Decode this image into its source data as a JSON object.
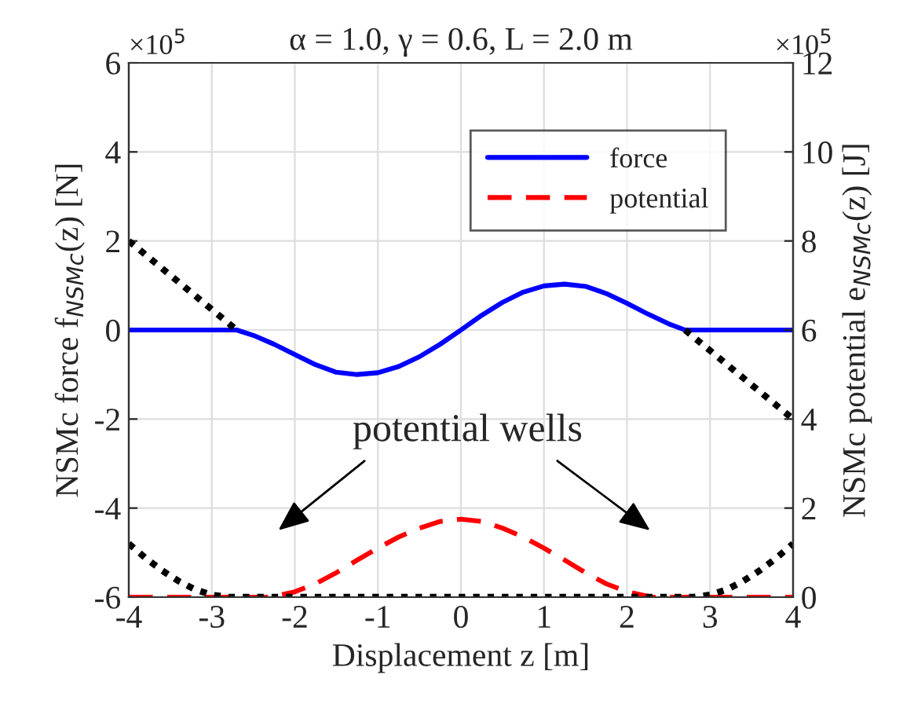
{
  "chart_data": {
    "type": "line",
    "title": "α = 1.0, γ = 0.6, L = 2.0 m",
    "xlabel": "Displacement z [m]",
    "ylabel": "NSMc force f$_{NSMc}$(z) [N]",
    "y2label": "NSMc potential e$_{NSMc}$(z) [J]",
    "xlim": [
      -4,
      4
    ],
    "xticks": [
      -4,
      -3,
      -2,
      -1,
      0,
      1,
      2,
      3,
      4
    ],
    "ylim": [
      -6,
      6
    ],
    "yticks": [
      -6,
      -4,
      -2,
      0,
      2,
      4,
      6
    ],
    "y2lim": [
      0,
      12
    ],
    "y2ticks": [
      0,
      2,
      4,
      6,
      8,
      10,
      12
    ],
    "grid": true,
    "legend": "top right",
    "series": [
      {
        "name": "force",
        "color": "#0000ff",
        "line_style": "solid",
        "x": [
          -4,
          -2.7,
          -2.5,
          -2.25,
          -2,
          -1.75,
          -1.5,
          -1.25,
          -1,
          -0.75,
          -0.5,
          -0.25,
          0,
          0.25,
          0.5,
          0.75,
          1,
          1.25,
          1.5,
          1.75,
          2,
          2.25,
          2.5,
          2.7,
          4
        ],
        "values": [
          0,
          0,
          -0.12,
          -0.32,
          -0.55,
          -0.78,
          -0.95,
          -1.0,
          -0.96,
          -0.82,
          -0.6,
          -0.32,
          0,
          0.33,
          0.62,
          0.85,
          0.99,
          1.03,
          0.98,
          0.82,
          0.6,
          0.36,
          0.14,
          0,
          0
        ]
      },
      {
        "name": "potential",
        "color": "#ff0000",
        "line_style": "dashed",
        "axis": "y2",
        "x": [
          -4,
          -2.3,
          -2,
          -1.75,
          -1.5,
          -1.25,
          -1,
          -0.75,
          -0.5,
          -0.25,
          0,
          0.25,
          0.5,
          0.75,
          1,
          1.25,
          1.5,
          1.75,
          2,
          2.3,
          4
        ],
        "values": [
          0,
          0,
          0.12,
          0.3,
          0.55,
          0.83,
          1.1,
          1.35,
          1.55,
          1.7,
          1.75,
          1.7,
          1.55,
          1.35,
          1.1,
          0.83,
          0.55,
          0.3,
          0.12,
          0,
          0
        ]
      },
      {
        "color": "#000000",
        "line_style": "dotted",
        "x": [
          -4,
          -2.7,
          0,
          2.7,
          4
        ],
        "values": [
          2,
          0,
          null,
          0,
          -2
        ]
      },
      {
        "color": "#000000",
        "line_style": "dotted",
        "axis": "y2",
        "x": [
          -4,
          -3.8,
          -3.6,
          -3.4,
          -3.2,
          -3,
          -2.8,
          2.8,
          3,
          3.2,
          3.4,
          3.6,
          3.8,
          4
        ],
        "values": [
          1.2,
          0.88,
          0.6,
          0.36,
          0.17,
          0.05,
          0,
          0,
          0.05,
          0.17,
          0.36,
          0.6,
          0.88,
          1.2
        ]
      }
    ],
    "annotations": [
      "×10$^{5}$",
      "×10$^{5}$",
      "potential wells"
    ]
  }
}
